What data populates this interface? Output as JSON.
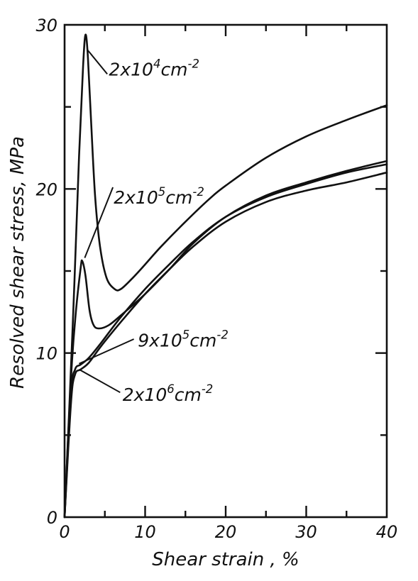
{
  "chart_data": {
    "type": "line",
    "xlabel": "Shear strain , %",
    "ylabel": "Resolved shear stress, MPa",
    "xlim": [
      0,
      40
    ],
    "ylim": [
      0,
      30
    ],
    "x_ticks": [
      "0",
      "10",
      "20",
      "30",
      "40"
    ],
    "y_ticks": [
      "0",
      "10",
      "20",
      "30"
    ],
    "grid": false,
    "series": [
      {
        "name": "2x10^4cm^-2",
        "label": {
          "base": "2x10",
          "exp": "4",
          "unit": "cm",
          "unit_exp": "-2"
        },
        "points": [
          [
            0,
            0
          ],
          [
            1.0,
            11.5
          ],
          [
            1.8,
            22
          ],
          [
            2.3,
            27.5
          ],
          [
            2.6,
            29.4
          ],
          [
            2.9,
            28
          ],
          [
            3.3,
            24
          ],
          [
            3.8,
            19.5
          ],
          [
            4.4,
            16.5
          ],
          [
            5.2,
            14.6
          ],
          [
            6.2,
            13.9
          ],
          [
            7.0,
            13.9
          ],
          [
            8.5,
            14.6
          ],
          [
            10,
            15.4
          ],
          [
            12,
            16.5
          ],
          [
            15,
            18
          ],
          [
            18,
            19.4
          ],
          [
            20,
            20.2
          ],
          [
            25,
            21.9
          ],
          [
            30,
            23.2
          ],
          [
            35,
            24.2
          ],
          [
            40,
            25.1
          ]
        ]
      },
      {
        "name": "2x10^5cm^-2",
        "label": {
          "base": "2x10",
          "exp": "5",
          "unit": "cm",
          "unit_exp": "-2"
        },
        "points": [
          [
            0,
            0
          ],
          [
            0.8,
            8.5
          ],
          [
            1.4,
            12.5
          ],
          [
            2.0,
            15.2
          ],
          [
            2.2,
            15.6
          ],
          [
            2.6,
            14.7
          ],
          [
            3.1,
            12.6
          ],
          [
            3.6,
            11.7
          ],
          [
            4.3,
            11.5
          ],
          [
            5.5,
            11.7
          ],
          [
            7,
            12.3
          ],
          [
            10,
            13.6
          ],
          [
            13,
            15.1
          ],
          [
            16,
            16.7
          ],
          [
            20,
            18.3
          ],
          [
            25,
            19.6
          ],
          [
            30,
            20.4
          ],
          [
            35,
            21.1
          ],
          [
            40,
            21.7
          ]
        ]
      },
      {
        "name": "9x10^5cm^-2",
        "label": {
          "base": "9x10",
          "exp": "5",
          "unit": "cm",
          "unit_exp": "-2"
        },
        "points": [
          [
            0,
            0
          ],
          [
            0.8,
            7.5
          ],
          [
            1.3,
            9.0
          ],
          [
            2.0,
            9.3
          ],
          [
            3.0,
            9.7
          ],
          [
            4.5,
            10.6
          ],
          [
            7,
            12.2
          ],
          [
            10,
            13.9
          ],
          [
            13,
            15.4
          ],
          [
            16,
            16.8
          ],
          [
            20,
            18.3
          ],
          [
            25,
            19.5
          ],
          [
            30,
            20.3
          ],
          [
            35,
            21.0
          ],
          [
            40,
            21.5
          ]
        ]
      },
      {
        "name": "2x10^6cm^-2",
        "label": {
          "base": "2x10",
          "exp": "6",
          "unit": "cm",
          "unit_exp": "-2"
        },
        "points": [
          [
            0,
            0
          ],
          [
            0.8,
            7.0
          ],
          [
            1.3,
            8.7
          ],
          [
            2.0,
            9.0
          ],
          [
            3.0,
            9.4
          ],
          [
            4.5,
            10.4
          ],
          [
            7,
            11.9
          ],
          [
            10,
            13.6
          ],
          [
            13,
            15.1
          ],
          [
            16,
            16.5
          ],
          [
            20,
            18.0
          ],
          [
            25,
            19.2
          ],
          [
            30,
            19.9
          ],
          [
            35,
            20.4
          ],
          [
            40,
            21.0
          ]
        ]
      }
    ]
  }
}
